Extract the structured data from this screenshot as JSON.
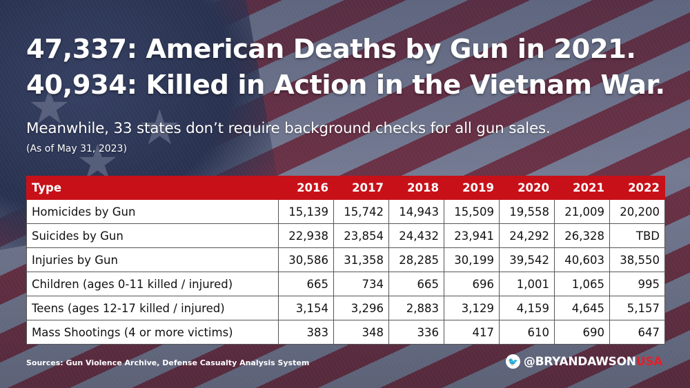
{
  "headline": {
    "line1": "47,337: American Deaths by Gun in 2021.",
    "line2": "40,934: Killed in Action in the Vietnam War."
  },
  "subheadline": "Meanwhile, 33 states don’t require background checks for all gun sales.",
  "as_of": "(As of May 31, 2023)",
  "table": {
    "headers": [
      "Type",
      "2016",
      "2017",
      "2018",
      "2019",
      "2020",
      "2021",
      "2022"
    ],
    "rows": [
      [
        "Homicides by Gun",
        "15,139",
        "15,742",
        "14,943",
        "15,509",
        "19,558",
        "21,009",
        "20,200"
      ],
      [
        "Suicides by Gun",
        "22,938",
        "23,854",
        "24,432",
        "23,941",
        "24,292",
        "26,328",
        "TBD"
      ],
      [
        "Injuries by Gun",
        "30,586",
        "31,358",
        "28,285",
        "30,199",
        "39,542",
        "40,603",
        "38,550"
      ],
      [
        "Children (ages 0-11 killed / injured)",
        "665",
        "734",
        "665",
        "696",
        "1,001",
        "1,065",
        "995"
      ],
      [
        "Teens (ages 12-17 killed / injured)",
        "3,154",
        "3,296",
        "2,883",
        "3,129",
        "4,159",
        "4,645",
        "5,157"
      ],
      [
        "Mass Shootings (4 or more victims)",
        "383",
        "348",
        "336",
        "417",
        "610",
        "690",
        "647"
      ]
    ]
  },
  "sources": "Sources: Gun Violence Archive, Defense Casualty Analysis System",
  "brand": {
    "icon": "twitter-bird-icon",
    "main": "@BRYANDAWSON",
    "accent": "USA"
  },
  "colors": {
    "header_red": "#c81018",
    "brand_red": "#e3202a",
    "text_white": "#ffffff"
  }
}
